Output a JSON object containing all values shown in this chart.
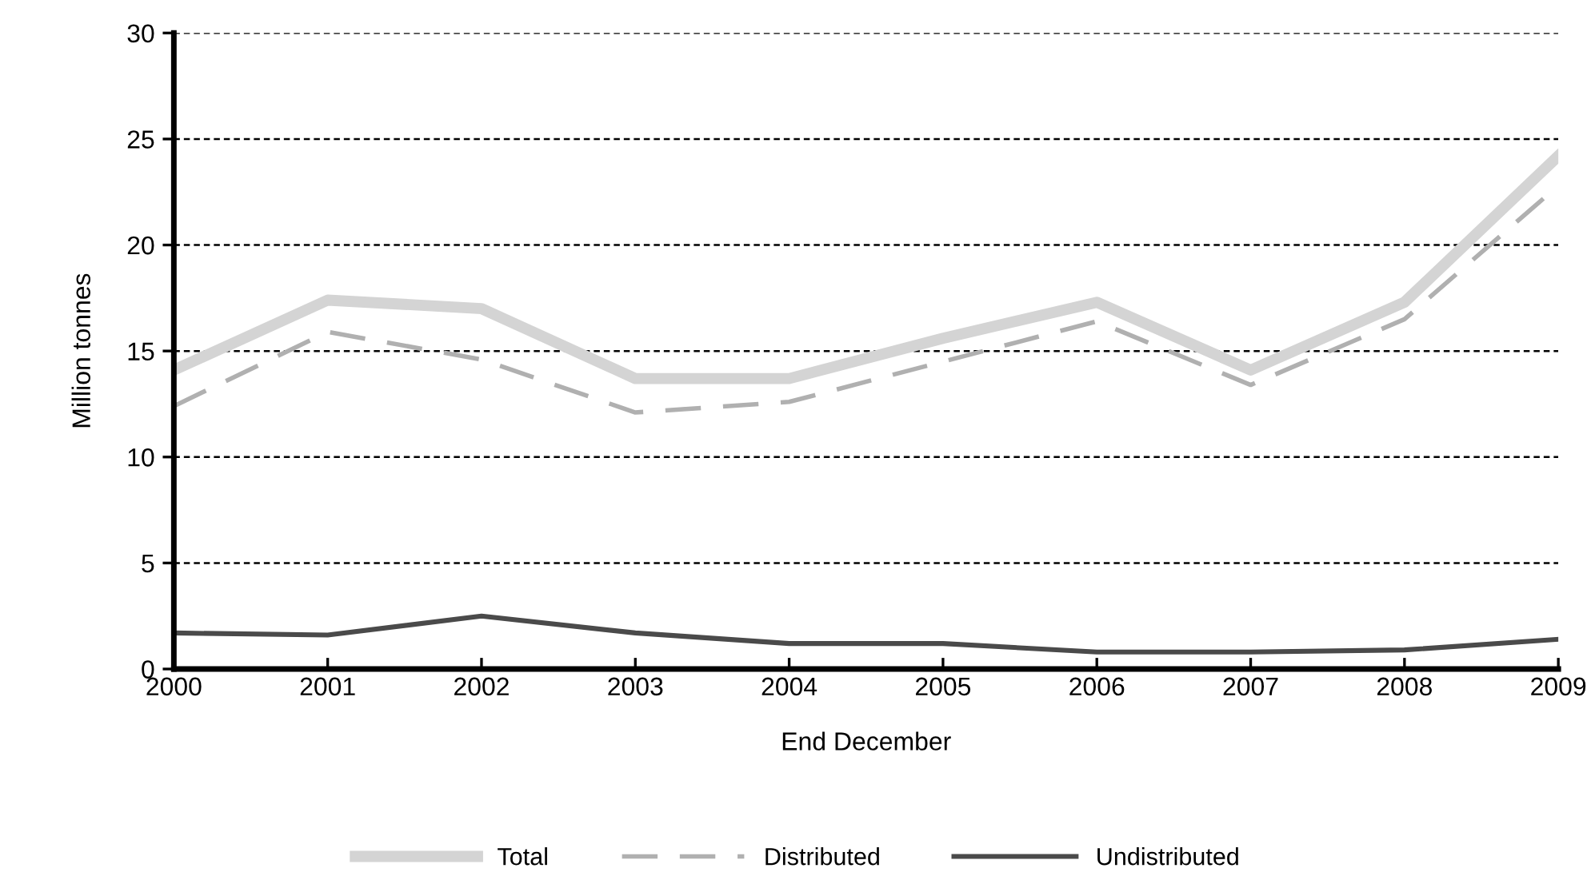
{
  "chart_data": {
    "type": "line",
    "xlabel": "End December",
    "ylabel": "Million tonnes",
    "x": [
      2000,
      2001,
      2002,
      2003,
      2004,
      2005,
      2006,
      2007,
      2008,
      2009
    ],
    "xlim": [
      2000,
      2009
    ],
    "xticks": [
      2000,
      2001,
      2002,
      2003,
      2004,
      2005,
      2006,
      2007,
      2008,
      2009
    ],
    "ylim": [
      0,
      30
    ],
    "yticks": [
      0,
      5,
      10,
      15,
      20,
      25,
      30
    ],
    "grid": "y",
    "legend": "bottom",
    "marker": "none",
    "series": [
      {
        "name": "Total",
        "color": "#d4d4d4",
        "line_style": "solid",
        "values": [
          14.1,
          17.4,
          17.0,
          13.7,
          13.7,
          15.6,
          17.3,
          14.1,
          17.3,
          24.2
        ]
      },
      {
        "name": "Distributed",
        "color": "#b0b0b0",
        "line_style": "dashed",
        "values": [
          12.4,
          15.9,
          14.6,
          12.1,
          12.6,
          14.5,
          16.4,
          13.4,
          16.5,
          22.8
        ]
      },
      {
        "name": "Undistributed",
        "color": "#4a4a4a",
        "line_style": "solid",
        "values": [
          1.7,
          1.6,
          2.5,
          1.7,
          1.2,
          1.2,
          0.8,
          0.8,
          0.9,
          1.4
        ]
      }
    ]
  }
}
